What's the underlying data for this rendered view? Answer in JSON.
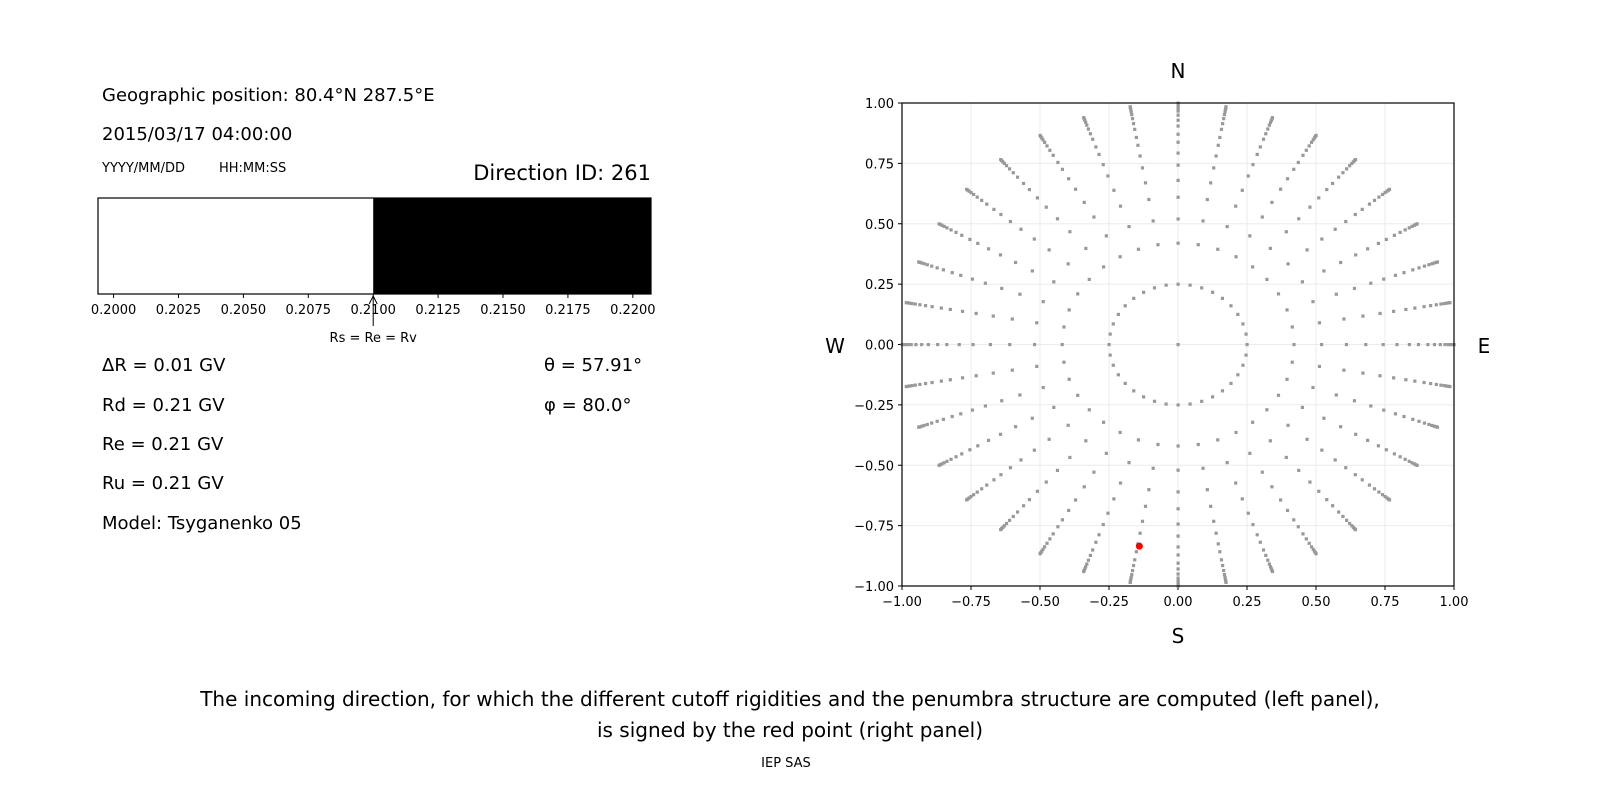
{
  "left_panel": {
    "position": "Geographic position: 80.4°N 287.5°E",
    "datetime": "2015/03/17 04:00:00",
    "date_format": "YYYY/MM/DD",
    "time_format": "HH:MM:SS",
    "direction_id": "Direction ID: 261",
    "delta_r": "ΔR = 0.01 GV",
    "rd": "Rd = 0.21 GV",
    "re": "Re = 0.21 GV",
    "ru": "Ru = 0.21 GV",
    "model": "Model: Tsyganenko 05",
    "theta": "θ = 57.91°",
    "phi": "φ = 80.0°"
  },
  "chart_data": [
    {
      "type": "bar",
      "description_role": "penumbra structure",
      "xlim": [
        0.1994,
        0.2207
      ],
      "xticks": [
        "0.2000",
        "0.2025",
        "0.2050",
        "0.2075",
        "0.2100",
        "0.2125",
        "0.2150",
        "0.2175",
        "0.2200"
      ],
      "segments": [
        {
          "from": 0.1994,
          "to": 0.21,
          "color": "#ffffff"
        },
        {
          "from": 0.21,
          "to": 0.2207,
          "color": "#000000"
        }
      ],
      "annotation": {
        "text": "Rs = Re = Rv",
        "x": 0.21
      }
    },
    {
      "type": "scatter",
      "xlim": [
        -1,
        1
      ],
      "ylim": [
        -1,
        1
      ],
      "xticks": [
        "−1.00",
        "−0.75",
        "−0.50",
        "−0.25",
        "0.00",
        "0.25",
        "0.50",
        "0.75",
        "1.00"
      ],
      "yticks": [
        "−1.00",
        "−0.75",
        "−0.50",
        "−0.25",
        "0.00",
        "0.25",
        "0.50",
        "0.75",
        "1.00"
      ],
      "grid": true,
      "compass": {
        "n": "N",
        "s": "S",
        "e": "E",
        "w": "W"
      },
      "grid_points": {
        "color": "#999999",
        "center": [
          0,
          0
        ],
        "ring_radius": 0.25,
        "ring_azimuth_step_deg": 10,
        "spoke_azimuth_step_deg": 10,
        "spoke_radii": [
          0.42,
          0.52,
          0.61,
          0.68,
          0.743,
          0.793,
          0.838,
          0.871,
          0.905,
          0.929,
          0.95,
          0.967,
          0.979,
          0.988,
          0.995,
          1.0
        ]
      },
      "selected_point": {
        "x": -0.14,
        "y": -0.835,
        "color": "#ff0000"
      }
    }
  ],
  "caption": {
    "line1": "The incoming direction, for which the different cutoff rigidities and the penumbra structure are computed (left panel),",
    "line2": "is signed by the red point (right panel)",
    "credit": "IEP SAS"
  }
}
